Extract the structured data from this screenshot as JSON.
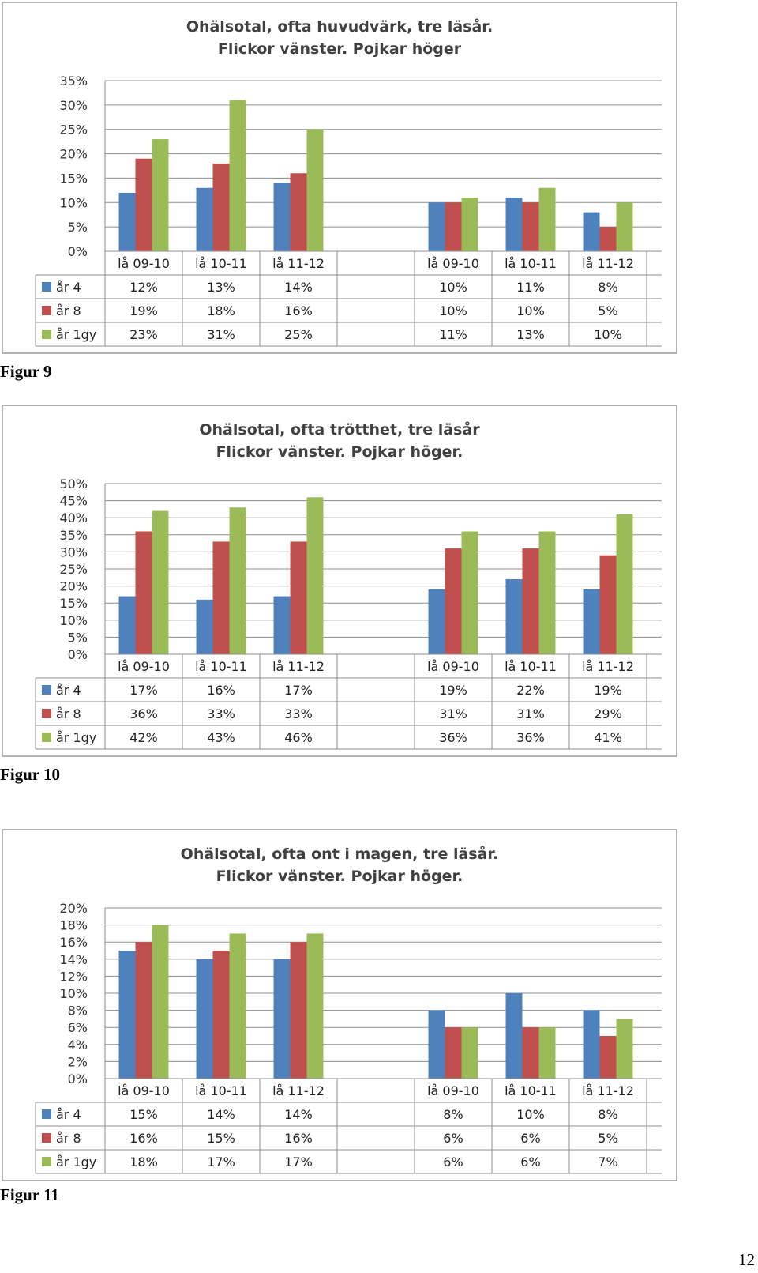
{
  "chart_data": [
    {
      "type": "bar",
      "title": "Ohälsotal, ofta huvudvärk, tre läsår.",
      "subtitle": "Flickor vänster. Pojkar höger",
      "categories": [
        "lå 09-10",
        "lå 10-11",
        "lå 11-12",
        "lå 09-10",
        "lå 10-11",
        "lå 11-12"
      ],
      "group_break_after": 3,
      "ylim": [
        0,
        35
      ],
      "ytick_step": 5,
      "ytick_labels": [
        "0%",
        "5%",
        "10%",
        "15%",
        "20%",
        "25%",
        "30%",
        "35%"
      ],
      "grid": true,
      "legend": "data table below plot",
      "series": [
        {
          "name": "år 4",
          "color": "#4F81BD",
          "values": [
            12,
            13,
            14,
            10,
            11,
            8
          ],
          "labels": [
            "12%",
            "13%",
            "14%",
            "10%",
            "11%",
            "8%"
          ]
        },
        {
          "name": "år 8",
          "color": "#C0504D",
          "values": [
            19,
            18,
            16,
            10,
            10,
            5
          ],
          "labels": [
            "19%",
            "18%",
            "16%",
            "10%",
            "10%",
            "5%"
          ]
        },
        {
          "name": "år 1gy",
          "color": "#9BBB59",
          "values": [
            23,
            31,
            25,
            11,
            13,
            10
          ],
          "labels": [
            "23%",
            "31%",
            "25%",
            "11%",
            "13%",
            "10%"
          ]
        }
      ]
    },
    {
      "type": "bar",
      "title": "Ohälsotal, ofta trötthet, tre läsår",
      "subtitle": "Flickor vänster. Pojkar höger.",
      "categories": [
        "lå 09-10",
        "lå 10-11",
        "lå 11-12",
        "lå 09-10",
        "lå 10-11",
        "lå 11-12"
      ],
      "group_break_after": 3,
      "ylim": [
        0,
        50
      ],
      "ytick_step": 5,
      "ytick_labels": [
        "0%",
        "5%",
        "10%",
        "15%",
        "20%",
        "25%",
        "30%",
        "35%",
        "40%",
        "45%",
        "50%"
      ],
      "grid": true,
      "legend": "data table below plot",
      "series": [
        {
          "name": "år 4",
          "color": "#4F81BD",
          "values": [
            17,
            16,
            17,
            19,
            22,
            19
          ],
          "labels": [
            "17%",
            "16%",
            "17%",
            "19%",
            "22%",
            "19%"
          ]
        },
        {
          "name": "år 8",
          "color": "#C0504D",
          "values": [
            36,
            33,
            33,
            31,
            31,
            29
          ],
          "labels": [
            "36%",
            "33%",
            "33%",
            "31%",
            "31%",
            "29%"
          ]
        },
        {
          "name": "år 1gy",
          "color": "#9BBB59",
          "values": [
            42,
            43,
            46,
            36,
            36,
            41
          ],
          "labels": [
            "42%",
            "43%",
            "46%",
            "36%",
            "36%",
            "41%"
          ]
        }
      ]
    },
    {
      "type": "bar",
      "title": "Ohälsotal, ofta ont i magen, tre läsår.",
      "subtitle": "Flickor vänster. Pojkar höger.",
      "categories": [
        "lå 09-10",
        "lå 10-11",
        "lå 11-12",
        "lå 09-10",
        "lå 10-11",
        "lå 11-12"
      ],
      "group_break_after": 3,
      "ylim": [
        0,
        20
      ],
      "ytick_step": 2,
      "ytick_labels": [
        "0%",
        "2%",
        "4%",
        "6%",
        "8%",
        "10%",
        "12%",
        "14%",
        "16%",
        "18%",
        "20%"
      ],
      "grid": true,
      "legend": "data table below plot",
      "series": [
        {
          "name": "år 4",
          "color": "#4F81BD",
          "values": [
            15,
            14,
            14,
            8,
            10,
            8
          ],
          "labels": [
            "15%",
            "14%",
            "14%",
            "8%",
            "10%",
            "8%"
          ]
        },
        {
          "name": "år 8",
          "color": "#C0504D",
          "values": [
            16,
            15,
            16,
            6,
            6,
            5
          ],
          "labels": [
            "16%",
            "15%",
            "16%",
            "6%",
            "6%",
            "5%"
          ]
        },
        {
          "name": "år 1gy",
          "color": "#9BBB59",
          "values": [
            18,
            17,
            17,
            6,
            6,
            7
          ],
          "labels": [
            "18%",
            "17%",
            "17%",
            "6%",
            "6%",
            "7%"
          ]
        }
      ]
    }
  ],
  "captions": [
    "Figur 9",
    "Figur 10",
    "Figur 11"
  ],
  "page_number": "12"
}
